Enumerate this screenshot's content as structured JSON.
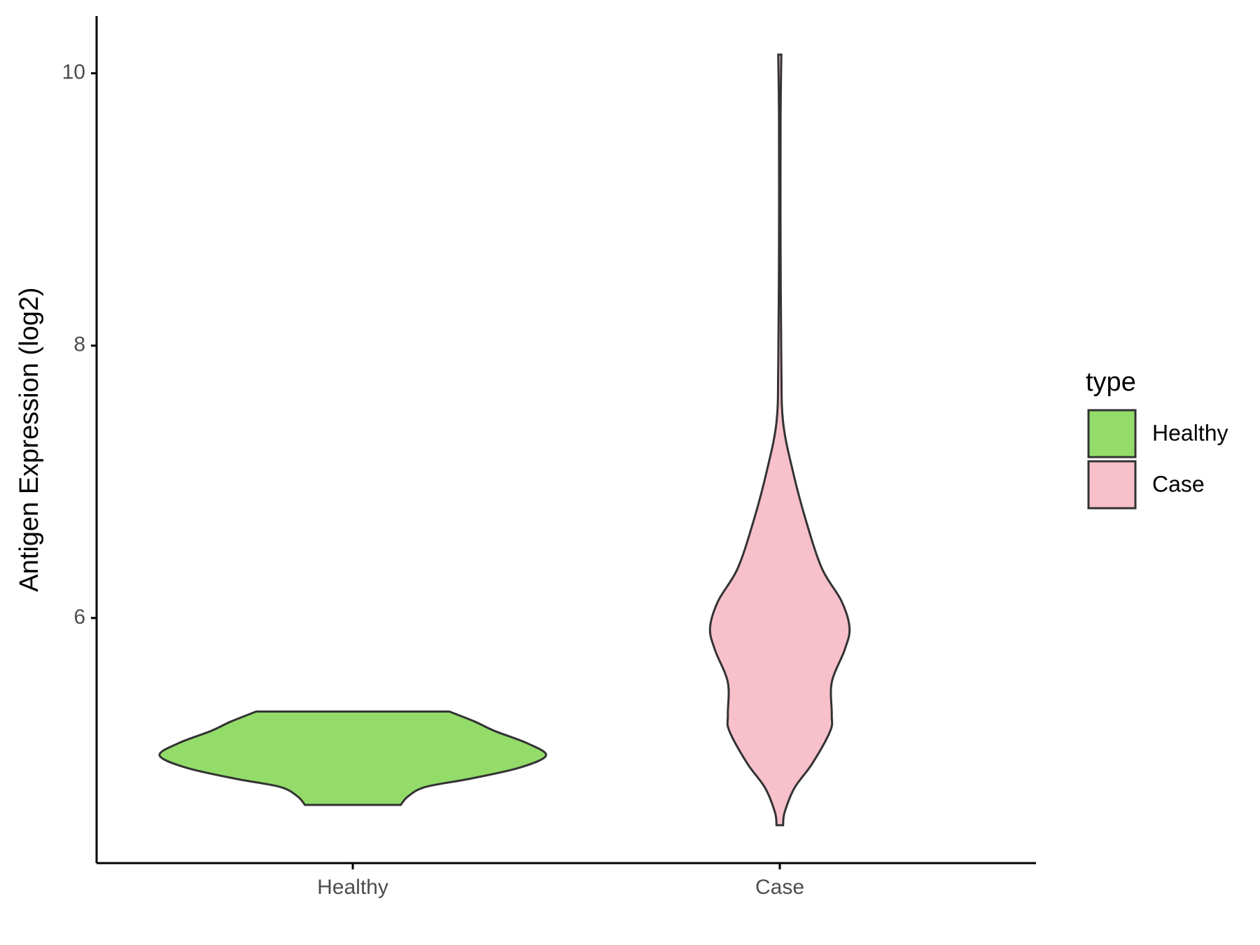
{
  "chart_data": {
    "type": "violin",
    "y_label": "Antigen Expression (log2)",
    "categories": [
      "Healthy",
      "Case"
    ],
    "ylim": [
      4.2,
      10.42
    ],
    "yticks": [
      6,
      8,
      10
    ],
    "legend_title": "type",
    "legend_position": "right",
    "violins": [
      {
        "name": "Healthy",
        "color": "#93dc6a",
        "y": [
          4.627,
          4.69,
          4.76,
          4.82,
          4.9,
          4.99,
          5.08,
          5.17,
          5.24,
          5.313
        ],
        "density": [
          0.248,
          0.286,
          0.378,
          0.609,
          0.861,
          1,
          0.903,
          0.735,
          0.63,
          0.5
        ]
      },
      {
        "name": "Case",
        "color": "#f7c0cb",
        "y": [
          4.478,
          4.573,
          4.752,
          4.931,
          5.17,
          5.29,
          5.528,
          5.767,
          5.928,
          6.125,
          6.364,
          6.722,
          7.081,
          7.439,
          7.857,
          8.752,
          9.648,
          10.137
        ],
        "density": [
          0.017,
          0.025,
          0.076,
          0.168,
          0.261,
          0.269,
          0.269,
          0.336,
          0.361,
          0.319,
          0.218,
          0.134,
          0.067,
          0.017,
          0.008,
          0.004,
          0.004,
          0.008
        ]
      }
    ]
  }
}
